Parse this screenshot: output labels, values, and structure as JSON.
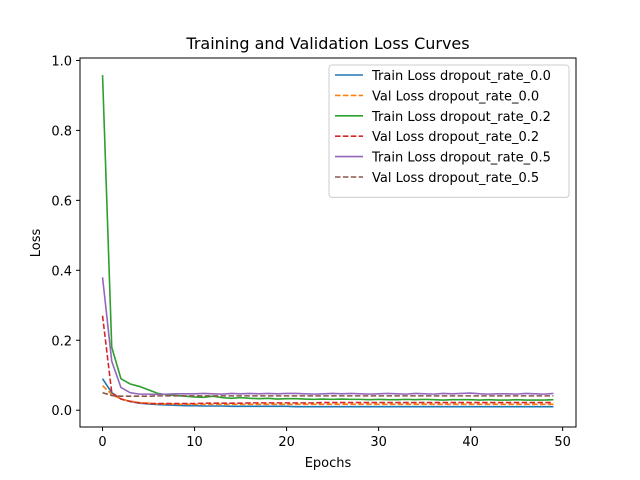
{
  "chart_data": {
    "type": "line",
    "title": "Training and Validation Loss Curves",
    "xlabel": "Epochs",
    "ylabel": "Loss",
    "xlim": [
      -2.45,
      51.45
    ],
    "ylim": [
      -0.048,
      1.007
    ],
    "xticks": [
      0,
      10,
      20,
      30,
      40,
      50
    ],
    "xtick_labels": [
      "0",
      "10",
      "20",
      "30",
      "40",
      "50"
    ],
    "yticks": [
      0.0,
      0.2,
      0.4,
      0.6,
      0.8,
      1.0
    ],
    "ytick_labels": [
      "0.0",
      "0.2",
      "0.4",
      "0.6",
      "0.8",
      "1.0"
    ],
    "grid": false,
    "legend_position": "top-right",
    "x": [
      0,
      1,
      2,
      3,
      4,
      5,
      6,
      7,
      8,
      9,
      10,
      11,
      12,
      13,
      14,
      15,
      16,
      17,
      18,
      19,
      20,
      21,
      22,
      23,
      24,
      25,
      26,
      27,
      28,
      29,
      30,
      31,
      32,
      33,
      34,
      35,
      36,
      37,
      38,
      39,
      40,
      41,
      42,
      43,
      44,
      45,
      46,
      47,
      48,
      49
    ],
    "series": [
      {
        "name": "Train Loss dropout_rate_0.0",
        "color": "#1f77b4",
        "style": "solid",
        "values": [
          0.09,
          0.05,
          0.032,
          0.025,
          0.02,
          0.018,
          0.016,
          0.015,
          0.014,
          0.013,
          0.013,
          0.012,
          0.012,
          0.012,
          0.011,
          0.011,
          0.011,
          0.011,
          0.011,
          0.011,
          0.011,
          0.01,
          0.01,
          0.01,
          0.01,
          0.01,
          0.01,
          0.01,
          0.01,
          0.01,
          0.01,
          0.01,
          0.01,
          0.01,
          0.01,
          0.01,
          0.01,
          0.01,
          0.01,
          0.01,
          0.01,
          0.01,
          0.01,
          0.01,
          0.01,
          0.01,
          0.01,
          0.01,
          0.01,
          0.01
        ]
      },
      {
        "name": "Val Loss dropout_rate_0.0",
        "color": "#ff7f0e",
        "style": "dashed",
        "values": [
          0.07,
          0.045,
          0.032,
          0.026,
          0.022,
          0.02,
          0.018,
          0.018,
          0.017,
          0.017,
          0.017,
          0.017,
          0.017,
          0.017,
          0.017,
          0.017,
          0.017,
          0.017,
          0.017,
          0.017,
          0.017,
          0.017,
          0.017,
          0.017,
          0.017,
          0.017,
          0.017,
          0.017,
          0.017,
          0.017,
          0.017,
          0.017,
          0.017,
          0.017,
          0.017,
          0.017,
          0.017,
          0.017,
          0.017,
          0.017,
          0.017,
          0.017,
          0.017,
          0.017,
          0.017,
          0.017,
          0.017,
          0.017,
          0.017,
          0.017
        ]
      },
      {
        "name": "Train Loss dropout_rate_0.2",
        "color": "#2ca02c",
        "style": "solid",
        "values": [
          0.958,
          0.18,
          0.09,
          0.075,
          0.068,
          0.058,
          0.048,
          0.044,
          0.042,
          0.04,
          0.038,
          0.037,
          0.04,
          0.036,
          0.034,
          0.036,
          0.034,
          0.033,
          0.034,
          0.032,
          0.033,
          0.033,
          0.032,
          0.031,
          0.032,
          0.031,
          0.032,
          0.031,
          0.031,
          0.03,
          0.031,
          0.03,
          0.03,
          0.031,
          0.03,
          0.031,
          0.03,
          0.029,
          0.03,
          0.03,
          0.03,
          0.029,
          0.03,
          0.029,
          0.029,
          0.03,
          0.029,
          0.029,
          0.029,
          0.03
        ]
      },
      {
        "name": "Val Loss dropout_rate_0.2",
        "color": "#d62728",
        "style": "dashed",
        "values": [
          0.27,
          0.05,
          0.032,
          0.025,
          0.021,
          0.019,
          0.019,
          0.019,
          0.019,
          0.019,
          0.019,
          0.02,
          0.02,
          0.02,
          0.02,
          0.02,
          0.021,
          0.021,
          0.021,
          0.021,
          0.021,
          0.021,
          0.021,
          0.021,
          0.022,
          0.022,
          0.022,
          0.022,
          0.022,
          0.022,
          0.022,
          0.022,
          0.022,
          0.022,
          0.022,
          0.022,
          0.022,
          0.022,
          0.022,
          0.022,
          0.022,
          0.022,
          0.022,
          0.022,
          0.022,
          0.022,
          0.022,
          0.022,
          0.022,
          0.022
        ]
      },
      {
        "name": "Train Loss dropout_rate_0.5",
        "color": "#9467bd",
        "style": "solid",
        "values": [
          0.38,
          0.14,
          0.065,
          0.05,
          0.046,
          0.046,
          0.045,
          0.046,
          0.047,
          0.047,
          0.047,
          0.048,
          0.047,
          0.046,
          0.048,
          0.047,
          0.048,
          0.047,
          0.048,
          0.047,
          0.048,
          0.048,
          0.047,
          0.046,
          0.047,
          0.048,
          0.047,
          0.048,
          0.047,
          0.046,
          0.047,
          0.048,
          0.047,
          0.046,
          0.048,
          0.047,
          0.046,
          0.048,
          0.047,
          0.048,
          0.049,
          0.047,
          0.046,
          0.047,
          0.047,
          0.046,
          0.048,
          0.047,
          0.046,
          0.048
        ]
      },
      {
        "name": "Val Loss dropout_rate_0.5",
        "color": "#8c564b",
        "style": "dashed",
        "values": [
          0.05,
          0.042,
          0.04,
          0.04,
          0.04,
          0.04,
          0.041,
          0.041,
          0.041,
          0.041,
          0.041,
          0.041,
          0.041,
          0.041,
          0.041,
          0.041,
          0.041,
          0.041,
          0.041,
          0.041,
          0.041,
          0.041,
          0.041,
          0.041,
          0.041,
          0.041,
          0.041,
          0.041,
          0.041,
          0.041,
          0.041,
          0.041,
          0.041,
          0.041,
          0.041,
          0.041,
          0.041,
          0.041,
          0.041,
          0.041,
          0.041,
          0.041,
          0.041,
          0.041,
          0.041,
          0.041,
          0.041,
          0.041,
          0.041,
          0.041
        ]
      }
    ]
  }
}
